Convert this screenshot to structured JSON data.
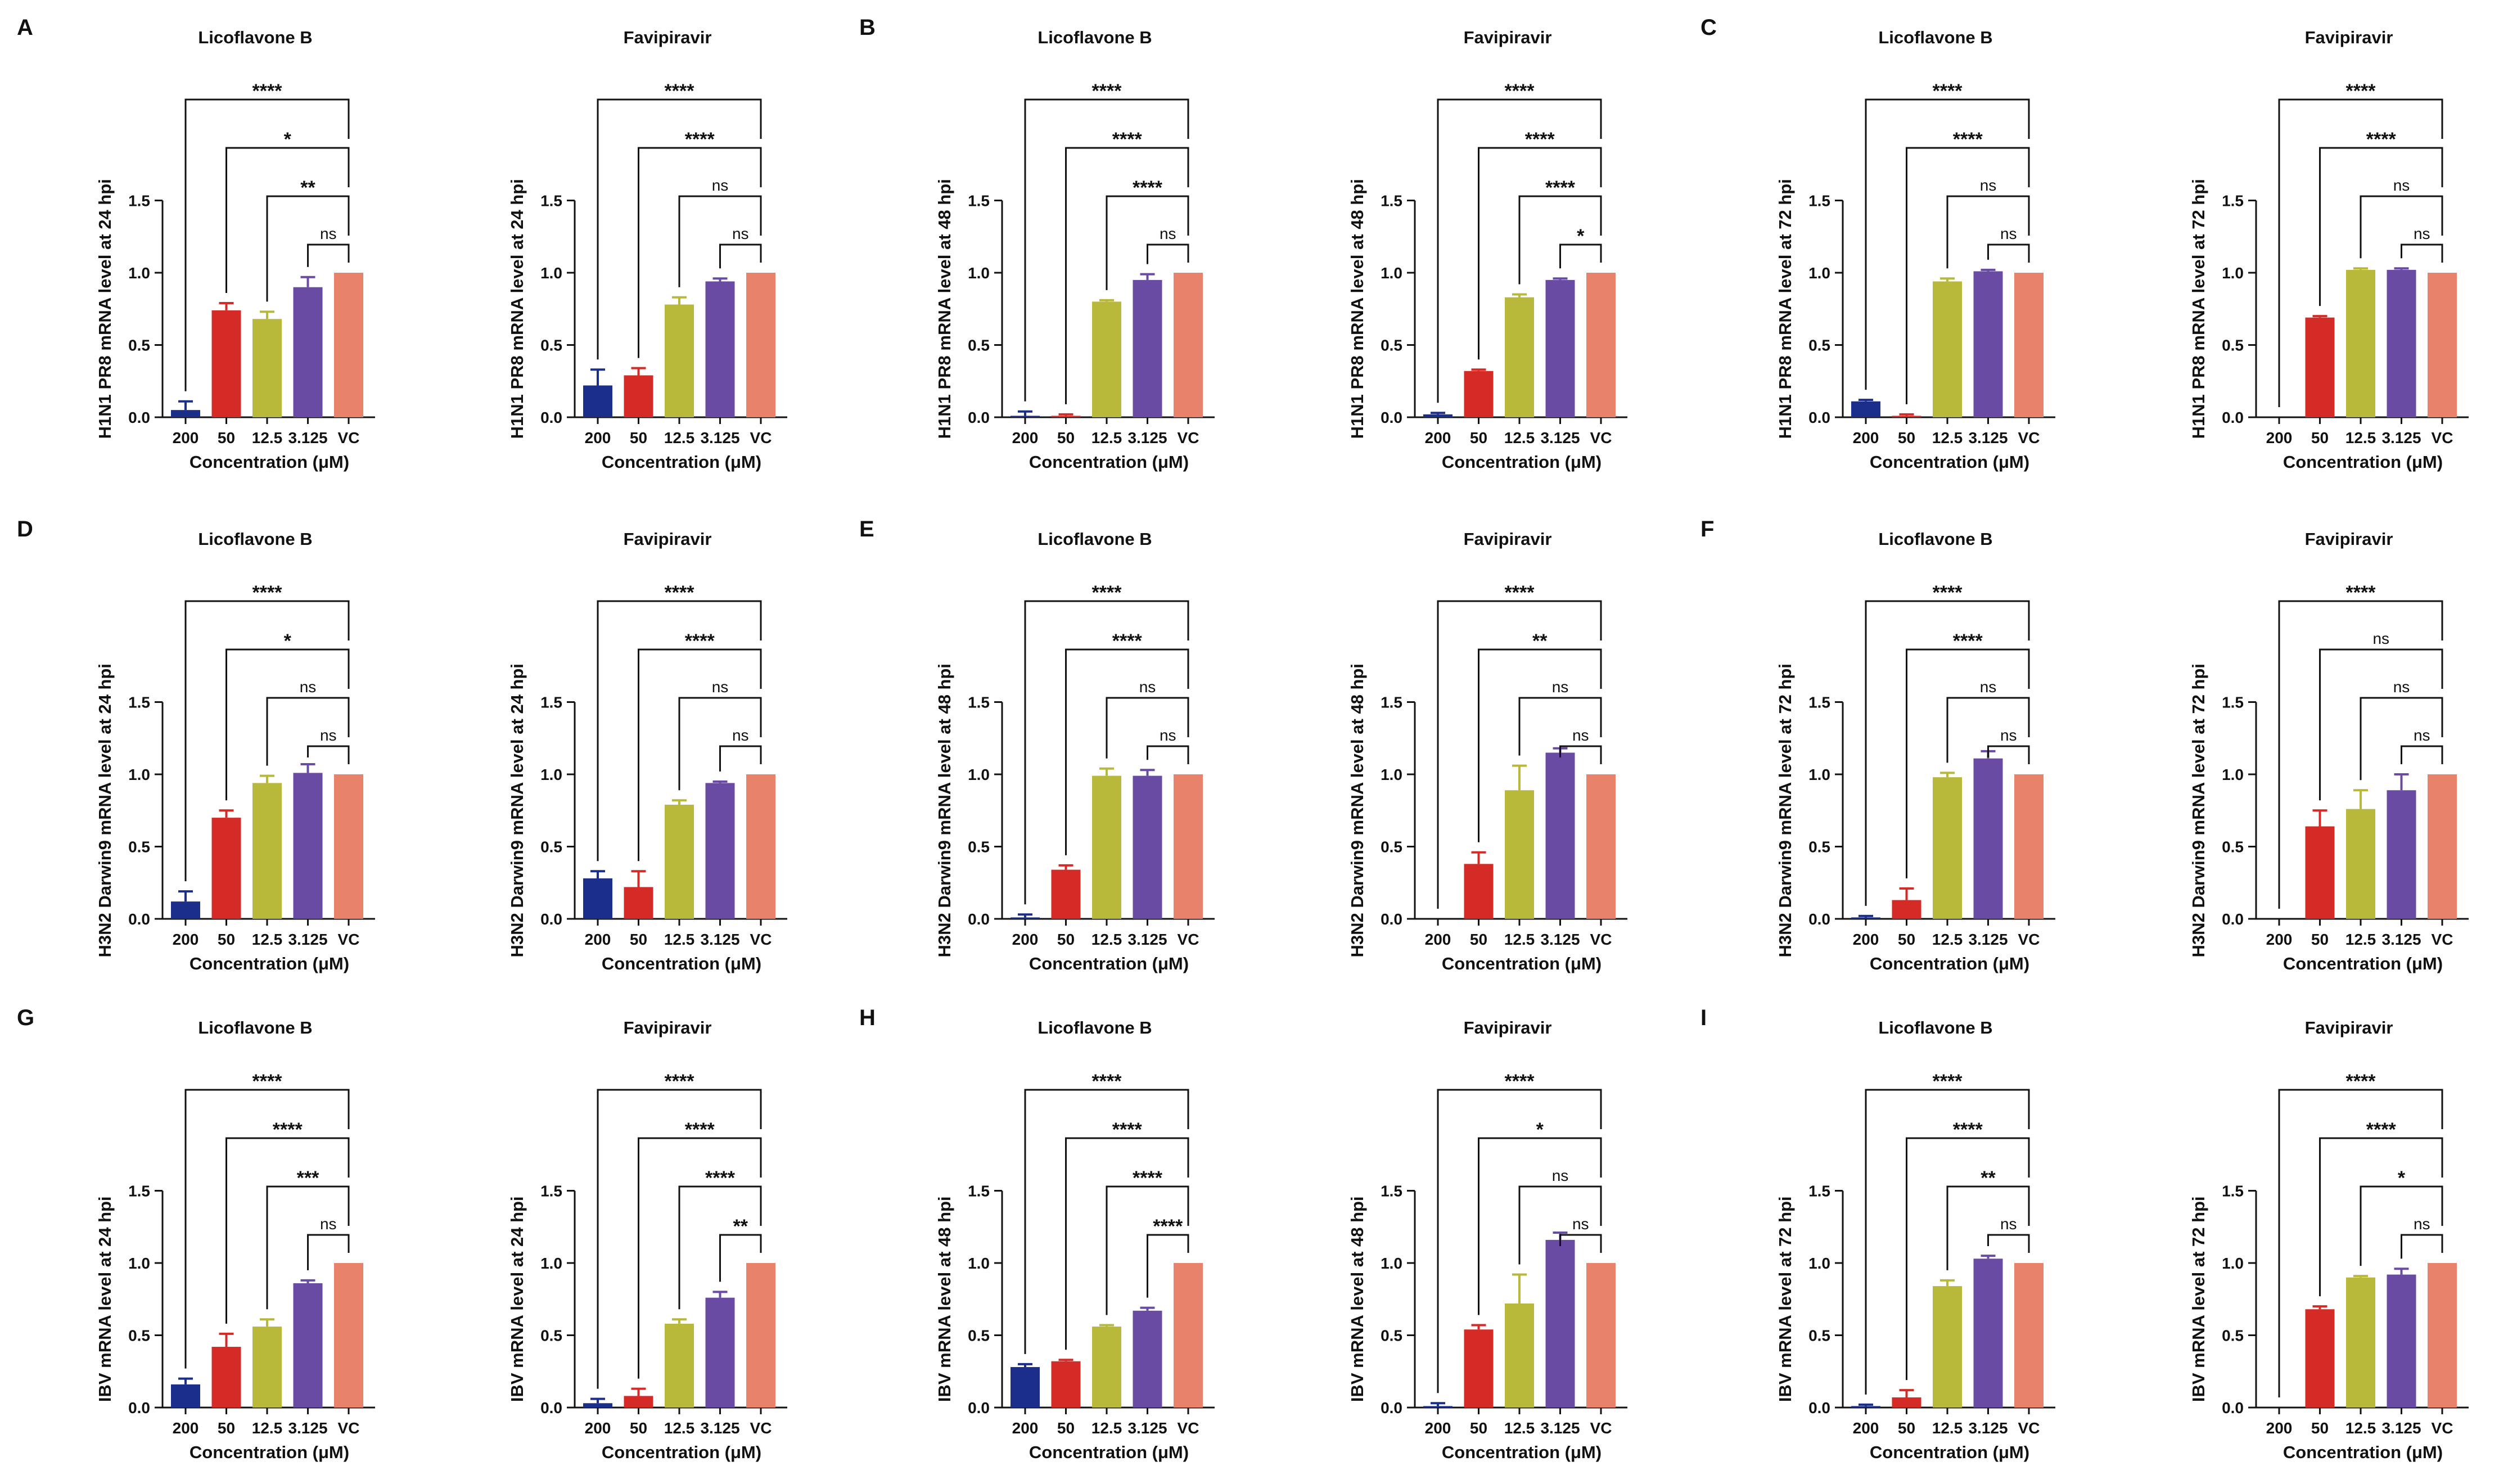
{
  "figure": {
    "xlabel": "Concentration (μM)",
    "categories": [
      "200",
      "50",
      "12.5",
      "3.125",
      "VC"
    ],
    "colors": [
      "#1b2f8a",
      "#d42b27",
      "#b8b83b",
      "#6a4ba3",
      "#e8826a"
    ]
  },
  "chart_data": [
    {
      "type": "bar",
      "panel": "A",
      "title": "Licoflavone B",
      "ylabel": "H1N1 PR8 mRNA level at 24 hpi",
      "xlabel": "Concentration (μM)",
      "categories": [
        "200",
        "50",
        "12.5",
        "3.125",
        "VC"
      ],
      "values": [
        0.05,
        0.74,
        0.68,
        0.9,
        1.0
      ],
      "errors": [
        0.06,
        0.05,
        0.05,
        0.07,
        0
      ],
      "ylim": [
        0,
        1.5
      ],
      "yticks": [
        "0.0",
        "0.5",
        "1.0",
        "1.5"
      ],
      "comparisons": [
        "****",
        "*",
        "**",
        "ns"
      ]
    },
    {
      "type": "bar",
      "panel": "",
      "title": "Favipiravir",
      "ylabel": "H1N1 PR8 mRNA level at 24 hpi",
      "xlabel": "Concentration (μM)",
      "categories": [
        "200",
        "50",
        "12.5",
        "3.125",
        "VC"
      ],
      "values": [
        0.22,
        0.29,
        0.78,
        0.94,
        1.0
      ],
      "errors": [
        0.11,
        0.05,
        0.05,
        0.02,
        0
      ],
      "ylim": [
        0,
        1.5
      ],
      "yticks": [
        "0.0",
        "0.5",
        "1.0",
        "1.5"
      ],
      "comparisons": [
        "****",
        "****",
        "ns",
        "ns"
      ]
    },
    {
      "type": "bar",
      "panel": "B",
      "title": "Licoflavone B",
      "ylabel": "H1N1 PR8 mRNA level at 48 hpi",
      "xlabel": "Concentration (μM)",
      "categories": [
        "200",
        "50",
        "12.5",
        "3.125",
        "VC"
      ],
      "values": [
        0.01,
        0.01,
        0.8,
        0.95,
        1.0
      ],
      "errors": [
        0.03,
        0.01,
        0.01,
        0.04,
        0
      ],
      "ylim": [
        0,
        1.5
      ],
      "yticks": [
        "0.0",
        "0.5",
        "1.0",
        "1.5"
      ],
      "comparisons": [
        "****",
        "****",
        "****",
        "ns"
      ]
    },
    {
      "type": "bar",
      "panel": "",
      "title": "Favipiravir",
      "ylabel": "H1N1 PR8 mRNA level at 48 hpi",
      "xlabel": "Concentration (μM)",
      "categories": [
        "200",
        "50",
        "12.5",
        "3.125",
        "VC"
      ],
      "values": [
        0.02,
        0.32,
        0.83,
        0.95,
        1.0
      ],
      "errors": [
        0.01,
        0.01,
        0.02,
        0.01,
        0
      ],
      "ylim": [
        0,
        1.5
      ],
      "yticks": [
        "0.0",
        "0.5",
        "1.0",
        "1.5"
      ],
      "comparisons": [
        "****",
        "****",
        "****",
        "*"
      ]
    },
    {
      "type": "bar",
      "panel": "C",
      "title": "Licoflavone B",
      "ylabel": "H1N1 PR8 mRNA level at 72 hpi",
      "xlabel": "Concentration (μM)",
      "categories": [
        "200",
        "50",
        "12.5",
        "3.125",
        "VC"
      ],
      "values": [
        0.11,
        0.01,
        0.94,
        1.01,
        1.0
      ],
      "errors": [
        0.01,
        0.01,
        0.02,
        0.01,
        0
      ],
      "ylim": [
        0,
        1.5
      ],
      "yticks": [
        "0.0",
        "0.5",
        "1.0",
        "1.5"
      ],
      "comparisons": [
        "****",
        "****",
        "ns",
        "ns"
      ]
    },
    {
      "type": "bar",
      "panel": "",
      "title": "Favipiravir",
      "ylabel": "H1N1 PR8 mRNA level at 72 hpi",
      "xlabel": "Concentration (μM)",
      "categories": [
        "200",
        "50",
        "12.5",
        "3.125",
        "VC"
      ],
      "values": [
        0.0,
        0.69,
        1.02,
        1.02,
        1.0
      ],
      "errors": [
        0,
        0.01,
        0.01,
        0.01,
        0
      ],
      "ylim": [
        0,
        1.5
      ],
      "yticks": [
        "0.0",
        "0.5",
        "1.0",
        "1.5"
      ],
      "comparisons": [
        "****",
        "****",
        "ns",
        "ns"
      ]
    },
    {
      "type": "bar",
      "panel": "D",
      "title": "Licoflavone B",
      "ylabel": "H3N2 Darwin9 mRNA level at 24 hpi",
      "xlabel": "Concentration (μM)",
      "categories": [
        "200",
        "50",
        "12.5",
        "3.125",
        "VC"
      ],
      "values": [
        0.12,
        0.7,
        0.94,
        1.01,
        1.0
      ],
      "errors": [
        0.07,
        0.05,
        0.05,
        0.06,
        0
      ],
      "ylim": [
        0,
        1.5
      ],
      "yticks": [
        "0.0",
        "0.5",
        "1.0",
        "1.5"
      ],
      "comparisons": [
        "****",
        "*",
        "ns",
        "ns"
      ]
    },
    {
      "type": "bar",
      "panel": "",
      "title": "Favipiravir",
      "ylabel": "H3N2 Darwin9 mRNA level at 24 hpi",
      "xlabel": "Concentration (μM)",
      "categories": [
        "200",
        "50",
        "12.5",
        "3.125",
        "VC"
      ],
      "values": [
        0.28,
        0.22,
        0.79,
        0.94,
        1.0
      ],
      "errors": [
        0.05,
        0.11,
        0.03,
        0.01,
        0
      ],
      "ylim": [
        0,
        1.5
      ],
      "yticks": [
        "0.0",
        "0.5",
        "1.0",
        "1.5"
      ],
      "comparisons": [
        "****",
        "****",
        "ns",
        "ns"
      ]
    },
    {
      "type": "bar",
      "panel": "E",
      "title": "Licoflavone B",
      "ylabel": "H3N2 Darwin9 mRNA level at 48 hpi",
      "xlabel": "Concentration (μM)",
      "categories": [
        "200",
        "50",
        "12.5",
        "3.125",
        "VC"
      ],
      "values": [
        0.01,
        0.34,
        0.99,
        0.99,
        1.0
      ],
      "errors": [
        0.02,
        0.03,
        0.05,
        0.04,
        0
      ],
      "ylim": [
        0,
        1.5
      ],
      "yticks": [
        "0.0",
        "0.5",
        "1.0",
        "1.5"
      ],
      "comparisons": [
        "****",
        "****",
        "ns",
        "ns"
      ]
    },
    {
      "type": "bar",
      "panel": "",
      "title": "Favipiravir",
      "ylabel": "H3N2 Darwin9 mRNA level at 48 hpi",
      "xlabel": "Concentration (μM)",
      "categories": [
        "200",
        "50",
        "12.5",
        "3.125",
        "VC"
      ],
      "values": [
        0.0,
        0.38,
        0.89,
        1.15,
        1.0
      ],
      "errors": [
        0,
        0.08,
        0.17,
        0.03,
        0
      ],
      "ylim": [
        0,
        1.5
      ],
      "yticks": [
        "0.0",
        "0.5",
        "1.0",
        "1.5"
      ],
      "comparisons": [
        "****",
        "**",
        "ns",
        "ns"
      ]
    },
    {
      "type": "bar",
      "panel": "F",
      "title": "Licoflavone B",
      "ylabel": "H3N2 Darwin9 mRNA level at 72 hpi",
      "xlabel": "Concentration (μM)",
      "categories": [
        "200",
        "50",
        "12.5",
        "3.125",
        "VC"
      ],
      "values": [
        0.01,
        0.13,
        0.98,
        1.11,
        1.0
      ],
      "errors": [
        0.01,
        0.08,
        0.03,
        0.05,
        0
      ],
      "ylim": [
        0,
        1.5
      ],
      "yticks": [
        "0.0",
        "0.5",
        "1.0",
        "1.5"
      ],
      "comparisons": [
        "****",
        "****",
        "ns",
        "ns"
      ]
    },
    {
      "type": "bar",
      "panel": "",
      "title": "Favipiravir",
      "ylabel": "H3N2 Darwin9 mRNA level at 72 hpi",
      "xlabel": "Concentration (μM)",
      "categories": [
        "200",
        "50",
        "12.5",
        "3.125",
        "VC"
      ],
      "values": [
        0.0,
        0.64,
        0.76,
        0.89,
        1.0
      ],
      "errors": [
        0,
        0.11,
        0.13,
        0.11,
        0
      ],
      "ylim": [
        0,
        1.5
      ],
      "yticks": [
        "0.0",
        "0.5",
        "1.0",
        "1.5"
      ],
      "comparisons": [
        "****",
        "ns",
        "ns",
        "ns"
      ]
    },
    {
      "type": "bar",
      "panel": "G",
      "title": "Licoflavone B",
      "ylabel": "IBV mRNA level at 24 hpi",
      "xlabel": "Concentration (μM)",
      "categories": [
        "200",
        "50",
        "12.5",
        "3.125",
        "VC"
      ],
      "values": [
        0.16,
        0.42,
        0.56,
        0.86,
        1.0
      ],
      "errors": [
        0.04,
        0.09,
        0.05,
        0.02,
        0
      ],
      "ylim": [
        0,
        1.5
      ],
      "yticks": [
        "0.0",
        "0.5",
        "1.0",
        "1.5"
      ],
      "comparisons": [
        "****",
        "****",
        "***",
        "ns"
      ]
    },
    {
      "type": "bar",
      "panel": "",
      "title": "Favipiravir",
      "ylabel": "IBV mRNA level at 24 hpi",
      "xlabel": "Concentration (μM)",
      "categories": [
        "200",
        "50",
        "12.5",
        "3.125",
        "VC"
      ],
      "values": [
        0.03,
        0.08,
        0.58,
        0.76,
        1.0
      ],
      "errors": [
        0.03,
        0.05,
        0.03,
        0.04,
        0
      ],
      "ylim": [
        0,
        1.5
      ],
      "yticks": [
        "0.0",
        "0.5",
        "1.0",
        "1.5"
      ],
      "comparisons": [
        "****",
        "****",
        "****",
        "**"
      ]
    },
    {
      "type": "bar",
      "panel": "H",
      "title": "Licoflavone B",
      "ylabel": "IBV mRNA level at 48 hpi",
      "xlabel": "Concentration (μM)",
      "categories": [
        "200",
        "50",
        "12.5",
        "3.125",
        "VC"
      ],
      "values": [
        0.28,
        0.32,
        0.56,
        0.67,
        1.0
      ],
      "errors": [
        0.02,
        0.01,
        0.01,
        0.02,
        0
      ],
      "ylim": [
        0,
        1.5
      ],
      "yticks": [
        "0.0",
        "0.5",
        "1.0",
        "1.5"
      ],
      "comparisons": [
        "****",
        "****",
        "****",
        "****"
      ]
    },
    {
      "type": "bar",
      "panel": "",
      "title": "Favipiravir",
      "ylabel": "IBV mRNA level at 48 hpi",
      "xlabel": "Concentration (μM)",
      "categories": [
        "200",
        "50",
        "12.5",
        "3.125",
        "VC"
      ],
      "values": [
        0.01,
        0.54,
        0.72,
        1.16,
        1.0
      ],
      "errors": [
        0.02,
        0.03,
        0.2,
        0.05,
        0
      ],
      "ylim": [
        0,
        1.5
      ],
      "yticks": [
        "0.0",
        "0.5",
        "1.0",
        "1.5"
      ],
      "comparisons": [
        "****",
        "*",
        "ns",
        "ns"
      ]
    },
    {
      "type": "bar",
      "panel": "I",
      "title": "Licoflavone B",
      "ylabel": "IBV mRNA level at 72 hpi",
      "xlabel": "Concentration (μM)",
      "categories": [
        "200",
        "50",
        "12.5",
        "3.125",
        "VC"
      ],
      "values": [
        0.01,
        0.07,
        0.84,
        1.03,
        1.0
      ],
      "errors": [
        0.01,
        0.05,
        0.04,
        0.02,
        0
      ],
      "ylim": [
        0,
        1.5
      ],
      "yticks": [
        "0.0",
        "0.5",
        "1.0",
        "1.5"
      ],
      "comparisons": [
        "****",
        "****",
        "**",
        "ns"
      ]
    },
    {
      "type": "bar",
      "panel": "",
      "title": "Favipiravir",
      "ylabel": "IBV mRNA level at 72 hpi",
      "xlabel": "Concentration (μM)",
      "categories": [
        "200",
        "50",
        "12.5",
        "3.125",
        "VC"
      ],
      "values": [
        0.0,
        0.68,
        0.9,
        0.92,
        1.0
      ],
      "errors": [
        0,
        0.02,
        0.01,
        0.04,
        0
      ],
      "ylim": [
        0,
        1.5
      ],
      "yticks": [
        "0.0",
        "0.5",
        "1.0",
        "1.5"
      ],
      "comparisons": [
        "****",
        "****",
        "*",
        "ns"
      ]
    }
  ]
}
